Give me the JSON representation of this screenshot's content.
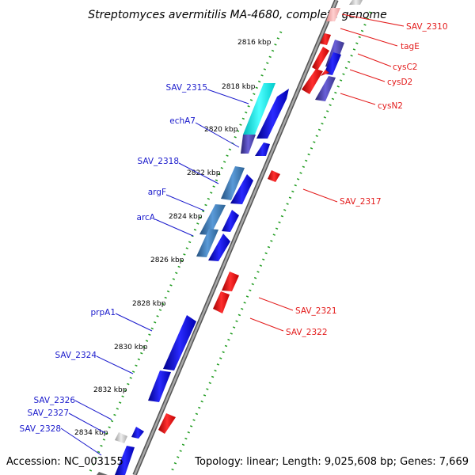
{
  "header": {
    "title": "Streptomyces avermitilis MA-4680, complete genome"
  },
  "footer": {
    "accession": "Accession: NC_003155",
    "topology": "Topology: linear; Length: 9,025,608 bp; Genes: 7,669"
  },
  "ruler": {
    "ticks": [
      "2816 kbp",
      "2818 kbp",
      "2820 kbp",
      "2822 kbp",
      "2824 kbp",
      "2826 kbp",
      "2828 kbp",
      "2830 kbp",
      "2832 kbp",
      "2834 kbp"
    ]
  },
  "genes_left": [
    "SAV_2315",
    "echA7",
    "SAV_2318",
    "argF",
    "arcA",
    "prpA1",
    "SAV_2324",
    "SAV_2326",
    "SAV_2327",
    "SAV_2328"
  ],
  "genes_right": [
    "SAV_2310",
    "tagE",
    "cysC2",
    "cysD2",
    "cysN2",
    "SAV_2317",
    "SAV_2321",
    "SAV_2322"
  ],
  "colors": {
    "forward": "#1010ee",
    "reverse": "#ee1010",
    "cyan": "#19f0f0",
    "steel": "#3d7ab8",
    "purple": "#5a50c8",
    "grey": "#cccccc",
    "label_left": "#1a1acc",
    "label_right": "#e31a1a",
    "backbone": "#8a8a8a",
    "dotted_track": "#1e9b1e"
  }
}
